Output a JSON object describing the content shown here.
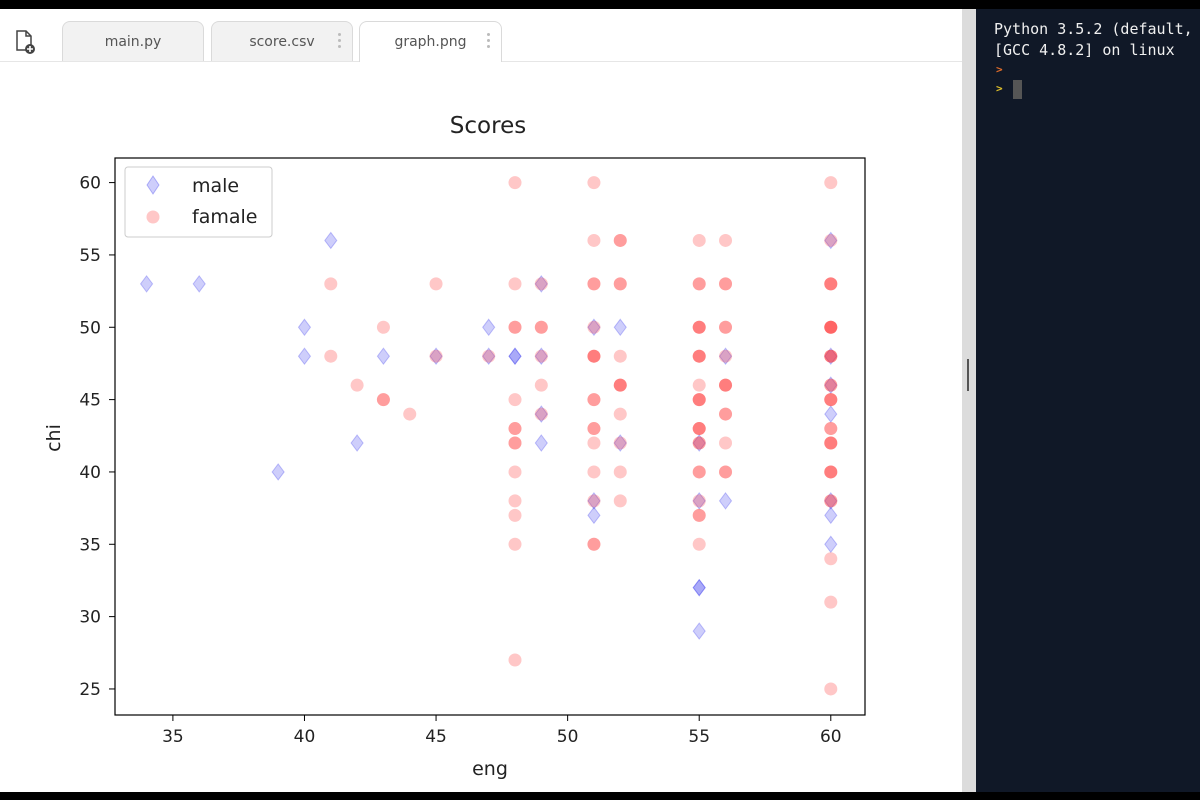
{
  "tabs": [
    {
      "label": "main.py",
      "active": false
    },
    {
      "label": "score.csv",
      "active": false
    },
    {
      "label": "graph.png",
      "active": true
    }
  ],
  "icons": {
    "new_file": "new-file-icon",
    "tab_menu": "vertical-dots-icon"
  },
  "console": {
    "lines": [
      "Python 3.5.2 (default,",
      "[GCC 4.8.2] on linux"
    ],
    "prompt_symbol": ">",
    "prompt_colors": [
      "#e06c2a",
      "#e0c02a"
    ]
  },
  "chart_data": {
    "type": "scatter",
    "title": "Scores",
    "xlabel": "eng",
    "ylabel": "chi",
    "xlim": [
      32.8,
      61.3
    ],
    "ylim": [
      23.2,
      61.7
    ],
    "xticks": [
      35,
      40,
      45,
      50,
      55,
      60
    ],
    "yticks": [
      25,
      30,
      35,
      40,
      45,
      50,
      55,
      60
    ],
    "legend_position": "upper-left",
    "series": [
      {
        "name": "male",
        "marker": "diamond",
        "color": "#3a3aee",
        "alpha": 0.25,
        "points": [
          [
            34,
            53
          ],
          [
            36,
            53
          ],
          [
            39,
            40
          ],
          [
            40,
            50
          ],
          [
            40,
            48
          ],
          [
            41,
            56
          ],
          [
            42,
            42
          ],
          [
            43,
            48
          ],
          [
            45,
            48
          ],
          [
            47,
            48
          ],
          [
            47,
            50
          ],
          [
            48,
            48
          ],
          [
            48,
            48
          ],
          [
            49,
            53
          ],
          [
            49,
            48
          ],
          [
            49,
            44
          ],
          [
            49,
            42
          ],
          [
            51,
            50
          ],
          [
            51,
            38
          ],
          [
            51,
            37
          ],
          [
            52,
            50
          ],
          [
            52,
            42
          ],
          [
            55,
            42
          ],
          [
            55,
            38
          ],
          [
            55,
            32
          ],
          [
            55,
            32
          ],
          [
            55,
            29
          ],
          [
            56,
            48
          ],
          [
            56,
            38
          ],
          [
            60,
            56
          ],
          [
            60,
            48
          ],
          [
            60,
            46
          ],
          [
            60,
            44
          ],
          [
            60,
            38
          ],
          [
            60,
            37
          ],
          [
            60,
            35
          ]
        ]
      },
      {
        "name": "famale",
        "marker": "circle",
        "color": "#ff2020",
        "alpha": 0.25,
        "points": [
          [
            41,
            53
          ],
          [
            41,
            48
          ],
          [
            42,
            46
          ],
          [
            43,
            50
          ],
          [
            43,
            45
          ],
          [
            43,
            45
          ],
          [
            44,
            44
          ],
          [
            45,
            53
          ],
          [
            45,
            48
          ],
          [
            47,
            48
          ],
          [
            48,
            60
          ],
          [
            48,
            53
          ],
          [
            48,
            50
          ],
          [
            48,
            50
          ],
          [
            48,
            45
          ],
          [
            48,
            43
          ],
          [
            48,
            43
          ],
          [
            48,
            42
          ],
          [
            48,
            42
          ],
          [
            48,
            40
          ],
          [
            48,
            38
          ],
          [
            48,
            37
          ],
          [
            48,
            35
          ],
          [
            48,
            27
          ],
          [
            49,
            53
          ],
          [
            49,
            50
          ],
          [
            49,
            50
          ],
          [
            49,
            48
          ],
          [
            49,
            46
          ],
          [
            49,
            44
          ],
          [
            51,
            60
          ],
          [
            51,
            56
          ],
          [
            51,
            53
          ],
          [
            51,
            53
          ],
          [
            51,
            50
          ],
          [
            51,
            48
          ],
          [
            51,
            48
          ],
          [
            51,
            48
          ],
          [
            51,
            45
          ],
          [
            51,
            45
          ],
          [
            51,
            43
          ],
          [
            51,
            43
          ],
          [
            51,
            42
          ],
          [
            51,
            40
          ],
          [
            51,
            38
          ],
          [
            51,
            35
          ],
          [
            51,
            35
          ],
          [
            52,
            56
          ],
          [
            52,
            56
          ],
          [
            52,
            53
          ],
          [
            52,
            53
          ],
          [
            52,
            48
          ],
          [
            52,
            46
          ],
          [
            52,
            46
          ],
          [
            52,
            46
          ],
          [
            52,
            44
          ],
          [
            52,
            42
          ],
          [
            52,
            40
          ],
          [
            52,
            38
          ],
          [
            55,
            56
          ],
          [
            55,
            53
          ],
          [
            55,
            53
          ],
          [
            55,
            50
          ],
          [
            55,
            50
          ],
          [
            55,
            50
          ],
          [
            55,
            48
          ],
          [
            55,
            48
          ],
          [
            55,
            48
          ],
          [
            55,
            46
          ],
          [
            55,
            45
          ],
          [
            55,
            45
          ],
          [
            55,
            45
          ],
          [
            55,
            43
          ],
          [
            55,
            43
          ],
          [
            55,
            43
          ],
          [
            55,
            42
          ],
          [
            55,
            42
          ],
          [
            55,
            40
          ],
          [
            55,
            40
          ],
          [
            55,
            38
          ],
          [
            55,
            37
          ],
          [
            55,
            37
          ],
          [
            55,
            35
          ],
          [
            56,
            56
          ],
          [
            56,
            53
          ],
          [
            56,
            53
          ],
          [
            56,
            50
          ],
          [
            56,
            50
          ],
          [
            56,
            48
          ],
          [
            56,
            46
          ],
          [
            56,
            46
          ],
          [
            56,
            46
          ],
          [
            56,
            44
          ],
          [
            56,
            44
          ],
          [
            56,
            42
          ],
          [
            56,
            40
          ],
          [
            56,
            40
          ],
          [
            60,
            60
          ],
          [
            60,
            56
          ],
          [
            60,
            53
          ],
          [
            60,
            53
          ],
          [
            60,
            53
          ],
          [
            60,
            50
          ],
          [
            60,
            50
          ],
          [
            60,
            50
          ],
          [
            60,
            50
          ],
          [
            60,
            48
          ],
          [
            60,
            48
          ],
          [
            60,
            48
          ],
          [
            60,
            46
          ],
          [
            60,
            46
          ],
          [
            60,
            45
          ],
          [
            60,
            45
          ],
          [
            60,
            45
          ],
          [
            60,
            43
          ],
          [
            60,
            43
          ],
          [
            60,
            42
          ],
          [
            60,
            42
          ],
          [
            60,
            42
          ],
          [
            60,
            40
          ],
          [
            60,
            40
          ],
          [
            60,
            40
          ],
          [
            60,
            38
          ],
          [
            60,
            38
          ],
          [
            60,
            34
          ],
          [
            60,
            31
          ],
          [
            60,
            25
          ]
        ]
      }
    ]
  }
}
